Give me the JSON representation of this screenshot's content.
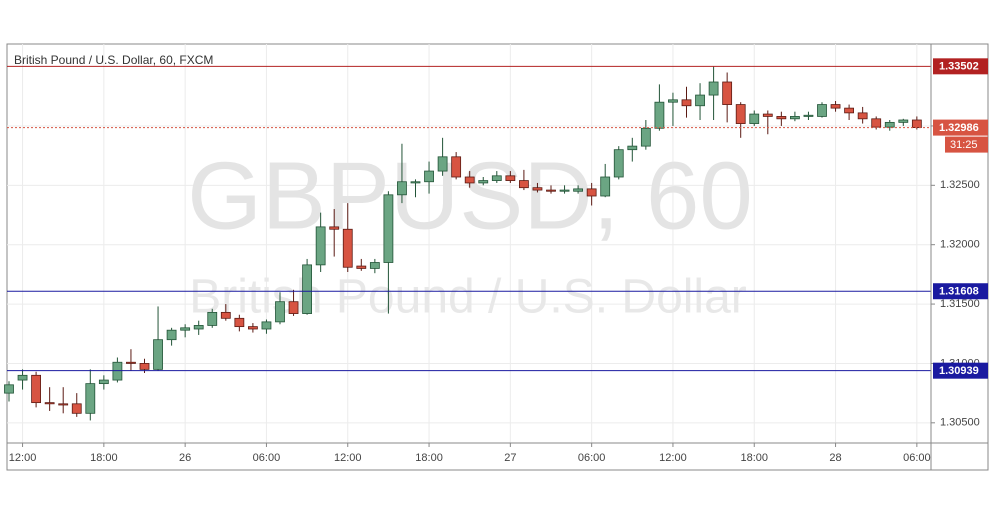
{
  "chart_data": {
    "type": "candlestick",
    "title": "British Pound / U.S. Dollar, 60, FXCM",
    "watermark": "GBPUSD, 60",
    "watermark_subtitle": "British Pound / U.S. Dollar",
    "categories": [
      null,
      "12:00",
      null,
      null,
      null,
      null,
      null,
      "18:00",
      null,
      null,
      null,
      null,
      null,
      "26",
      null,
      null,
      null,
      null,
      null,
      "06:00",
      null,
      null,
      null,
      null,
      null,
      "12:00",
      null,
      null,
      null,
      null,
      null,
      "18:00",
      null,
      null,
      null,
      null,
      null,
      "27",
      null,
      null,
      null,
      null,
      null,
      "06:00",
      null,
      null,
      null,
      null,
      null,
      "12:00",
      null,
      null,
      null,
      null,
      null,
      "18:00",
      null,
      null,
      null,
      null,
      null,
      "28",
      null,
      null,
      null,
      null,
      null,
      "06:00"
    ],
    "open": [
      1.3075,
      1.3086,
      1.309,
      1.3067,
      1.3066,
      1.3066,
      1.3058,
      1.3083,
      1.3086,
      1.3101,
      1.31,
      1.3095,
      1.312,
      1.3128,
      1.3129,
      1.3132,
      1.3143,
      1.3138,
      1.3131,
      1.3129,
      1.3135,
      1.3152,
      1.3142,
      1.3183,
      1.3215,
      1.3213,
      1.3182,
      1.318,
      1.3185,
      1.3242,
      1.3252,
      1.3253,
      1.3262,
      1.3274,
      1.3257,
      1.3252,
      1.3254,
      1.3258,
      1.3254,
      1.3248,
      1.3246,
      1.3245,
      1.3245,
      1.3247,
      1.3241,
      1.3257,
      1.328,
      1.3283,
      1.3298,
      1.332,
      1.3322,
      1.3317,
      1.3326,
      1.3337,
      1.3318,
      1.3302,
      1.331,
      1.3308,
      1.3306,
      1.3308,
      1.3308,
      1.3318,
      1.3315,
      1.3311,
      1.3306,
      1.3299,
      1.3303,
      1.3305
    ],
    "high": [
      1.3085,
      1.3095,
      1.3093,
      1.308,
      1.308,
      1.3075,
      1.3095,
      1.309,
      1.3105,
      1.3112,
      1.3104,
      1.3148,
      1.313,
      1.3133,
      1.3136,
      1.3146,
      1.315,
      1.3141,
      1.3134,
      1.3137,
      1.316,
      1.3162,
      1.3188,
      1.3227,
      1.323,
      1.3235,
      1.3188,
      1.3188,
      1.3245,
      1.3285,
      1.3255,
      1.327,
      1.329,
      1.3278,
      1.3262,
      1.3257,
      1.3262,
      1.3262,
      1.3263,
      1.3252,
      1.325,
      1.325,
      1.325,
      1.3252,
      1.3268,
      1.3283,
      1.329,
      1.3305,
      1.3335,
      1.3328,
      1.3333,
      1.3336,
      1.335,
      1.3345,
      1.332,
      1.3313,
      1.3313,
      1.3312,
      1.3312,
      1.3312,
      1.332,
      1.3321,
      1.3318,
      1.3316,
      1.3308,
      1.3305,
      1.3306,
      1.3308
    ],
    "low": [
      1.3068,
      1.3078,
      1.3063,
      1.306,
      1.3058,
      1.3055,
      1.3052,
      1.3078,
      1.3084,
      1.3094,
      1.3092,
      1.3094,
      1.3115,
      1.3122,
      1.3124,
      1.313,
      1.3136,
      1.3127,
      1.3126,
      1.3125,
      1.3133,
      1.314,
      1.3141,
      1.3177,
      1.319,
      1.3177,
      1.3178,
      1.3176,
      1.3142,
      1.3235,
      1.324,
      1.3243,
      1.3258,
      1.3255,
      1.3248,
      1.325,
      1.3252,
      1.3252,
      1.3246,
      1.3244,
      1.3243,
      1.3243,
      1.3243,
      1.3233,
      1.324,
      1.3255,
      1.327,
      1.328,
      1.3296,
      1.33,
      1.3307,
      1.3305,
      1.3305,
      1.3303,
      1.329,
      1.33,
      1.3293,
      1.33,
      1.3304,
      1.3305,
      1.3307,
      1.3312,
      1.3305,
      1.3302,
      1.3297,
      1.3296,
      1.33,
      1.3297
    ],
    "close": [
      1.3082,
      1.309,
      1.3067,
      1.3066,
      1.3065,
      1.3058,
      1.3083,
      1.3086,
      1.3101,
      1.31,
      1.3095,
      1.312,
      1.3128,
      1.313,
      1.3132,
      1.3143,
      1.3138,
      1.3131,
      1.3129,
      1.3135,
      1.3152,
      1.3142,
      1.3183,
      1.3215,
      1.3213,
      1.3181,
      1.318,
      1.3185,
      1.3242,
      1.3253,
      1.3253,
      1.3262,
      1.3274,
      1.3257,
      1.3252,
      1.3254,
      1.3258,
      1.3254,
      1.3248,
      1.3246,
      1.3245,
      1.3246,
      1.3247,
      1.3241,
      1.3257,
      1.328,
      1.3283,
      1.3298,
      1.332,
      1.3322,
      1.3317,
      1.3326,
      1.3337,
      1.3318,
      1.3302,
      1.331,
      1.3308,
      1.3306,
      1.3308,
      1.3309,
      1.3318,
      1.3315,
      1.3311,
      1.3306,
      1.3299,
      1.3303,
      1.3305,
      1.32986
    ],
    "up_color": "#6ba583",
    "down_color": "#d75442",
    "ylim": [
      1.3033,
      1.3369
    ],
    "yticks": [
      {
        "value": 1.305,
        "label": "1.30500"
      },
      {
        "value": 1.31,
        "label": "1.31000"
      },
      {
        "value": 1.315,
        "label": "1.31500"
      },
      {
        "value": 1.32,
        "label": "1.32000"
      },
      {
        "value": 1.325,
        "label": "1.32500"
      },
      {
        "value": 1.33,
        "label": "1.33000"
      }
    ],
    "grid": true,
    "levels": [
      {
        "value": 1.33502,
        "color": "#b22222",
        "style": "solid"
      },
      {
        "value": 1.32986,
        "color": "#d75442",
        "style": "dotted"
      },
      {
        "value": 1.31608,
        "color": "#1a1aa0",
        "style": "solid"
      },
      {
        "value": 1.30939,
        "color": "#1a1aa0",
        "style": "solid"
      }
    ],
    "countdown": "31:25"
  }
}
